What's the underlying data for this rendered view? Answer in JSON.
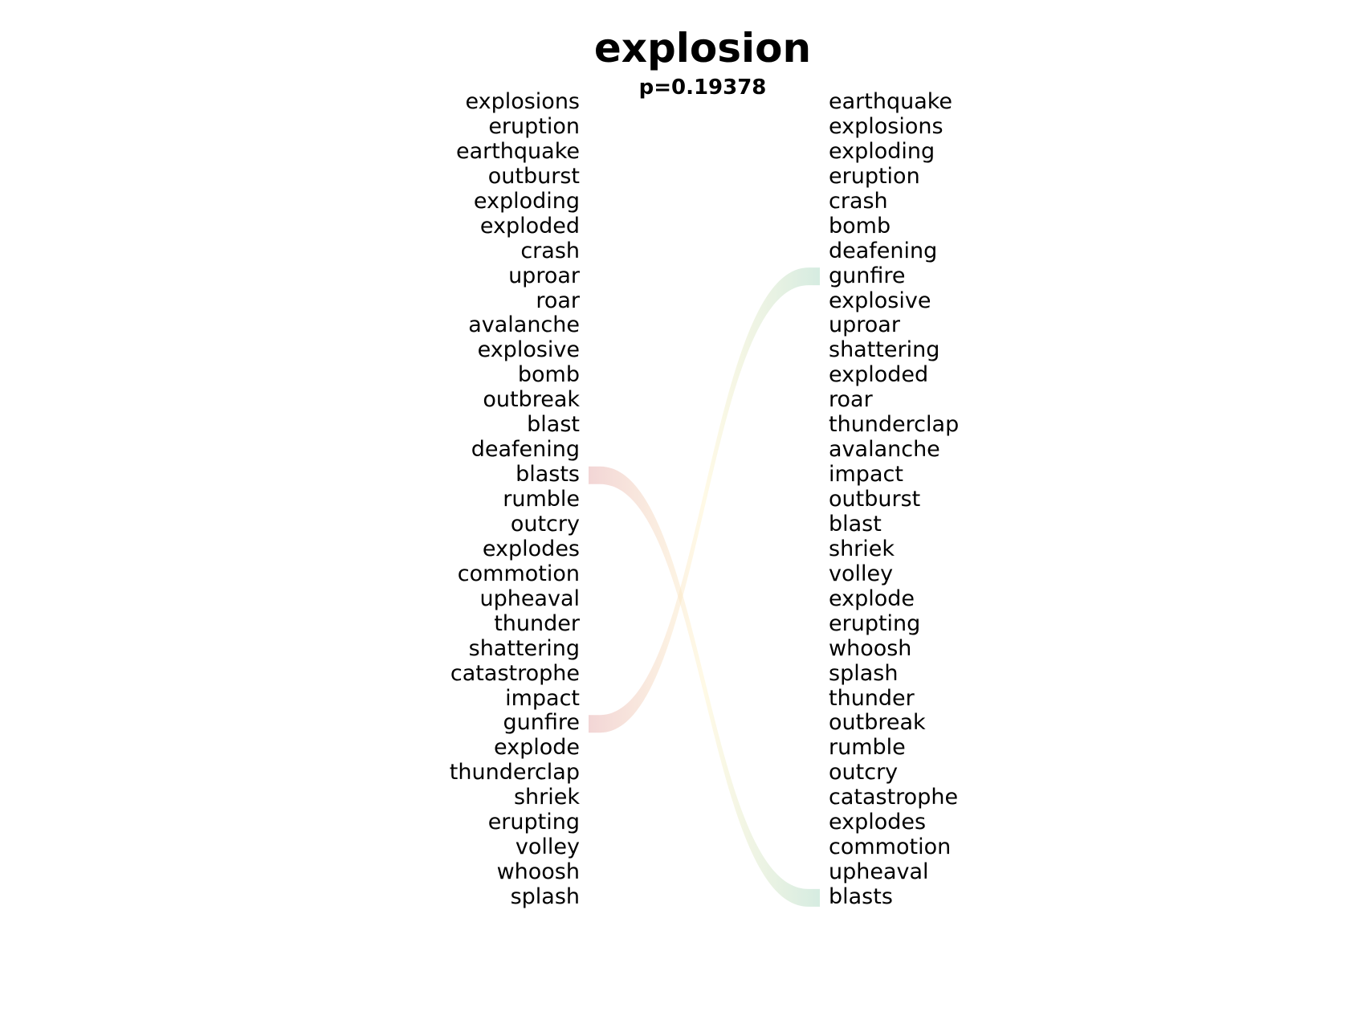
{
  "title": "explosion",
  "subtitle": "p=0.19378",
  "left_words": [
    "explosions",
    "eruption",
    "earthquake",
    "outburst",
    "exploding",
    "exploded",
    "crash",
    "uproar",
    "roar",
    "avalanche",
    "explosive",
    "bomb",
    "outbreak",
    "blast",
    "deafening",
    "blasts",
    "rumble",
    "outcry",
    "explodes",
    "commotion",
    "upheaval",
    "thunder",
    "shattering",
    "catastrophe",
    "impact",
    "gunfire",
    "explode",
    "thunderclap",
    "shriek",
    "erupting",
    "volley",
    "whoosh",
    "splash"
  ],
  "right_words": [
    "earthquake",
    "explosions",
    "exploding",
    "eruption",
    "crash",
    "bomb",
    "deafening",
    "gunfire",
    "explosive",
    "uproar",
    "shattering",
    "exploded",
    "roar",
    "thunderclap",
    "avalanche",
    "impact",
    "outburst",
    "blast",
    "shriek",
    "volley",
    "explode",
    "erupting",
    "whoosh",
    "splash",
    "thunder",
    "outbreak",
    "rumble",
    "outcry",
    "catastrophe",
    "explodes",
    "commotion",
    "upheaval",
    "blasts"
  ],
  "links": [
    {
      "word": "blasts",
      "left_rank": 16,
      "right_rank": 33
    },
    {
      "word": "gunfire",
      "left_rank": 26,
      "right_rank": 8
    }
  ],
  "colors": {
    "left_end": "#e8b4b4",
    "middle": "#fff3c8",
    "right_end": "#b4dcc8"
  }
}
